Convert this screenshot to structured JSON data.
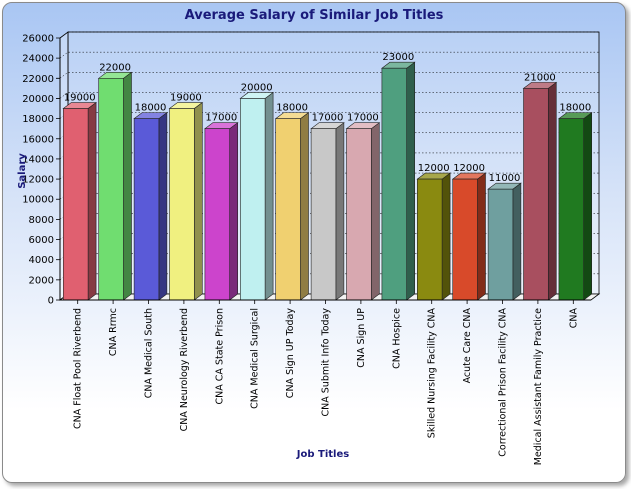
{
  "chart_data": {
    "type": "bar",
    "title": "Average Salary of Similar Job Titles",
    "xlabel": "Job Titles",
    "ylabel": "Salary",
    "ylim": [
      0,
      26000
    ],
    "y_ticks": [
      0,
      2000,
      4000,
      6000,
      8000,
      10000,
      12000,
      14000,
      16000,
      18000,
      20000,
      22000,
      24000,
      26000
    ],
    "grid": true,
    "legend": "none",
    "categories": [
      "CNA Float Pool Riverbend",
      "CNA Rrmc",
      "CNA Medical South",
      "CNA Neurology Riverbend",
      "CNA CA State Prison",
      "CNA Medical Surgical",
      "CNA Sign UP Today",
      "CNA Submit Info Today",
      "CNA Sign UP",
      "CNA Hospice",
      "Skilled Nursing Facility CNA",
      "Acute Care CNA",
      "Correctional Prison Facility CNA",
      "Medical Assistant Family Practice",
      "CNA"
    ],
    "values": [
      19000,
      22000,
      18000,
      19000,
      17000,
      20000,
      18000,
      17000,
      17000,
      23000,
      12000,
      12000,
      11000,
      21000,
      18000
    ],
    "data_labels": [
      "19000",
      "22000",
      "18000",
      "19000",
      "17000",
      "20000",
      "18000",
      "17000",
      "17000",
      "23000",
      "12000",
      "12000",
      "11000",
      "21000",
      "18000"
    ],
    "colors": [
      "#e06070",
      "#70dd70",
      "#5a5ad8",
      "#f0f080",
      "#cc44cc",
      "#bff0f0",
      "#f0d070",
      "#c8c8c8",
      "#d8a8b0",
      "#4f9f7f",
      "#8a8a10",
      "#d84a2a",
      "#6f9f9f",
      "#a84f5f",
      "#207a20"
    ]
  }
}
